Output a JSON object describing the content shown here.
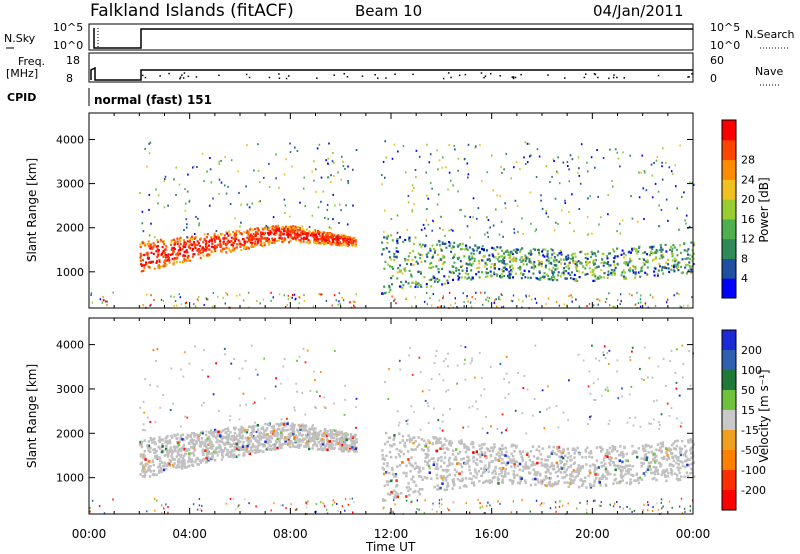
{
  "header": {
    "station": "Falkland Islands (fitACF)",
    "beam": "Beam 10",
    "date": "04/Jan/2011"
  },
  "panels": {
    "nsky": {
      "left_label": "N.Sky",
      "right_label": "N.Search",
      "left_ticks": [
        "10^5",
        "10^0"
      ],
      "right_ticks": [
        "10^5",
        "10^0"
      ]
    },
    "freq": {
      "left_label_1": "Freq.",
      "left_label_2": "[MHz]",
      "right_label": "Nave",
      "left_ticks": [
        "18",
        "8"
      ],
      "right_ticks": [
        "60",
        "0"
      ]
    },
    "cpid": {
      "label": "CPID",
      "mode": "normal (fast) 151"
    }
  },
  "colors": {
    "power": [
      "#0000ff",
      "#1e4fa0",
      "#2e8b57",
      "#4fb04f",
      "#9acd32",
      "#f0c020",
      "#ff8c00",
      "#ff4500",
      "#ff0000"
    ],
    "velocity": [
      "#1a2bd6",
      "#3060b0",
      "#1f7a3a",
      "#6ec23c",
      "#c8c8c8",
      "#f0a020",
      "#ff8000",
      "#ff3000",
      "#ff0000"
    ],
    "ground_scatter": "#c0c0c0"
  },
  "chart_data": [
    {
      "type": "heatmap",
      "name": "power",
      "xlabel": "",
      "ylabel": "Slant Range [km]",
      "x_ticks": [
        "00:00",
        "04:00",
        "08:00",
        "12:00",
        "16:00",
        "20:00",
        "00:00"
      ],
      "y_ticks": [
        1000,
        2000,
        3000,
        4000
      ],
      "xlim": [
        0,
        24
      ],
      "ylim": [
        180,
        4600
      ],
      "colorbar": {
        "label": "Power [dB]",
        "ticks": [
          4,
          8,
          12,
          16,
          20,
          24,
          28
        ]
      },
      "data_gap_hours": [
        [
          0.95,
          2.0
        ],
        [
          10.6,
          11.6
        ]
      ],
      "echo_bands": [
        {
          "start": 2.0,
          "end": 10.6,
          "low": [
            1000,
            1400,
            1700,
            1600
          ],
          "high": [
            1700,
            1900,
            2100,
            1800
          ],
          "level": 26
        },
        {
          "start": 11.6,
          "end": 24,
          "low": [
            500,
            900,
            800,
            1000
          ],
          "high": [
            1900,
            1600,
            1500,
            1700
          ],
          "level": 10
        }
      ]
    },
    {
      "type": "heatmap",
      "name": "velocity",
      "xlabel": "Time UT",
      "ylabel": "Slant Range [km]",
      "x_ticks": [
        "00:00",
        "04:00",
        "08:00",
        "12:00",
        "16:00",
        "20:00",
        "00:00"
      ],
      "y_ticks": [
        1000,
        2000,
        3000,
        4000
      ],
      "xlim": [
        0,
        24
      ],
      "ylim": [
        180,
        4600
      ],
      "colorbar": {
        "label": "Velocity [m s⁻¹]",
        "ticks": [
          200,
          100,
          50,
          15,
          -15,
          -50,
          -100,
          -200
        ]
      },
      "dominant": "ground scatter (grey)"
    }
  ]
}
